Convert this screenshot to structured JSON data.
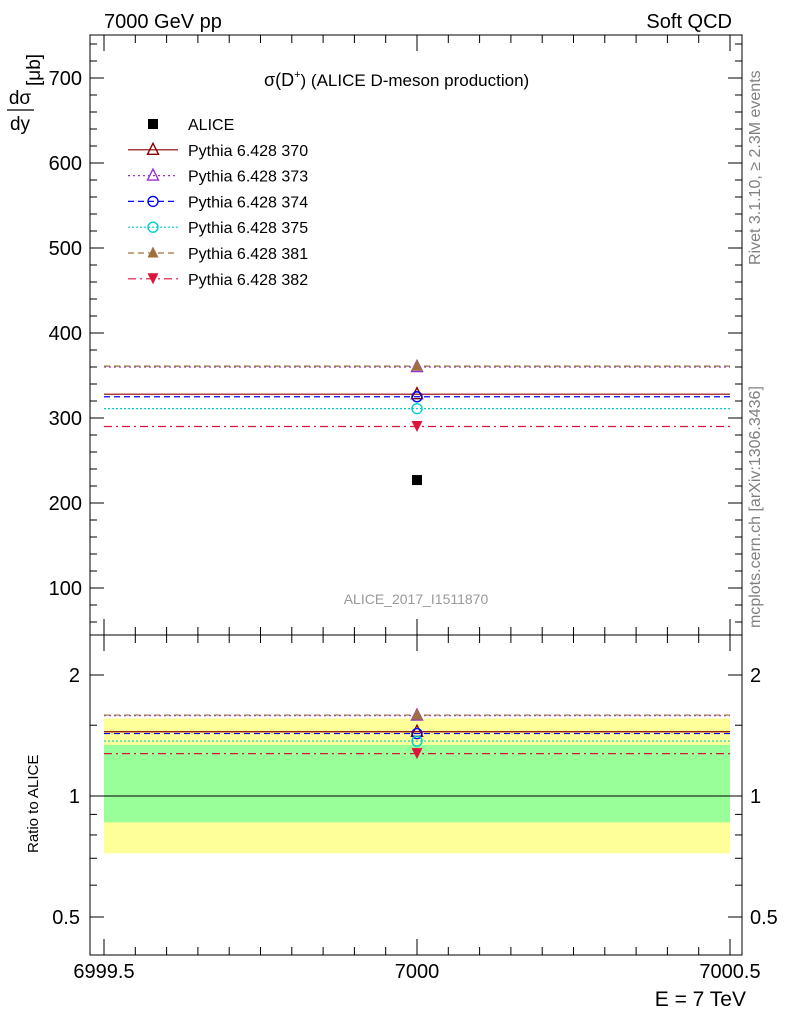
{
  "header": {
    "left": "7000 GeV pp",
    "right": "Soft QCD"
  },
  "side_labels": {
    "rivet": "Rivet 3.1.10, ≥ 2.3M events",
    "mcplots": "mcplots.cern.ch [arXiv:1306.3436]"
  },
  "analysis_tag": "ALICE_2017_I1511870",
  "main_title": {
    "sigma": "σ(D",
    "sup": "+",
    "rest": ") (ALICE D-meson production)"
  },
  "ylabel": {
    "num": "dσ",
    "den": "dy",
    "unit": "[μb]"
  },
  "ratio_ylabel": "Ratio to ALICE",
  "xlabel": "E = 7 TeV",
  "colors": {
    "data": "#000000",
    "p370": "#8b0000",
    "p373": "#9932cc",
    "p374": "#0000ff",
    "p375": "#00ced1",
    "p381": "#a0703a",
    "p382": "#dc143c",
    "band_inner": "#99ff99",
    "band_outer": "#ffff99"
  },
  "chart_data": {
    "type": "scatter",
    "x_range": [
      6999.5,
      7000.5
    ],
    "x_ticks": [
      "6999.5",
      "7000",
      "7000.5"
    ],
    "y_range": [
      50,
      750
    ],
    "y_ticks": [
      "100",
      "200",
      "300",
      "400",
      "500",
      "600",
      "700"
    ],
    "ratio_range": [
      0.4,
      2.5
    ],
    "ratio_ticks": [
      "0.5",
      "1",
      "2"
    ],
    "data": {
      "name": "ALICE",
      "x": 7000,
      "y": 227,
      "marker": "square"
    },
    "band": {
      "inner": [
        0.86,
        1.34
      ],
      "outer": [
        0.72,
        1.56
      ]
    },
    "series": [
      {
        "name": "Pythia 6.428 370",
        "key": "p370",
        "y": 328,
        "ratio": 1.445,
        "marker": "triangle-up-open",
        "dash": ""
      },
      {
        "name": "Pythia 6.428 373",
        "key": "p373",
        "y": 360,
        "ratio": 1.585,
        "marker": "triangle-up-open",
        "dash": "2,3"
      },
      {
        "name": "Pythia 6.428 374",
        "key": "p374",
        "y": 325,
        "ratio": 1.43,
        "marker": "circle-open",
        "dash": "6,4"
      },
      {
        "name": "Pythia 6.428 375",
        "key": "p375",
        "y": 311,
        "ratio": 1.37,
        "marker": "circle-open",
        "dash": "2,2"
      },
      {
        "name": "Pythia 6.428 381",
        "key": "p381",
        "y": 361,
        "ratio": 1.59,
        "marker": "triangle-up-filled",
        "dash": "6,4"
      },
      {
        "name": "Pythia 6.428 382",
        "key": "p382",
        "y": 290,
        "ratio": 1.275,
        "marker": "triangle-down-filled",
        "dash": "8,4,2,4"
      }
    ]
  }
}
